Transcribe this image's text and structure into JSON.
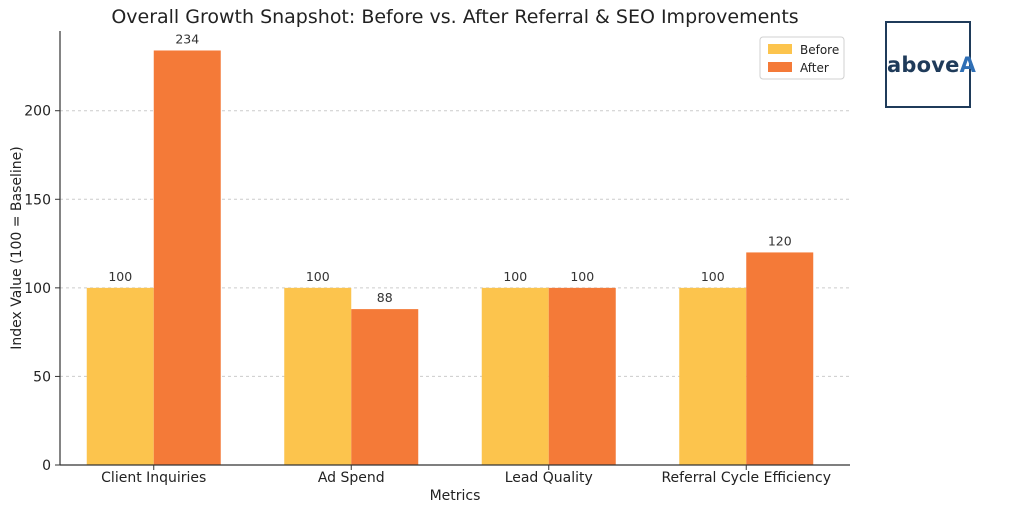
{
  "chart_data": {
    "type": "bar",
    "title": "Overall Growth Snapshot: Before vs. After Referral & SEO Improvements",
    "xlabel": "Metrics",
    "ylabel": "Index Value (100 = Baseline)",
    "categories": [
      "Client Inquiries",
      "Ad Spend",
      "Lead Quality",
      "Referral Cycle Efficiency"
    ],
    "series": [
      {
        "name": "Before",
        "values": [
          100,
          100,
          100,
          100
        ],
        "color": "#fcc44d"
      },
      {
        "name": "After",
        "values": [
          234,
          88,
          100,
          120
        ],
        "color": "#f47a38"
      }
    ],
    "ylim": [
      0,
      245
    ],
    "yticks": [
      0,
      50,
      100,
      150,
      200
    ],
    "grid": true,
    "legend_position": "top-right"
  },
  "logo": {
    "text_main": "above",
    "text_accent": "A"
  }
}
